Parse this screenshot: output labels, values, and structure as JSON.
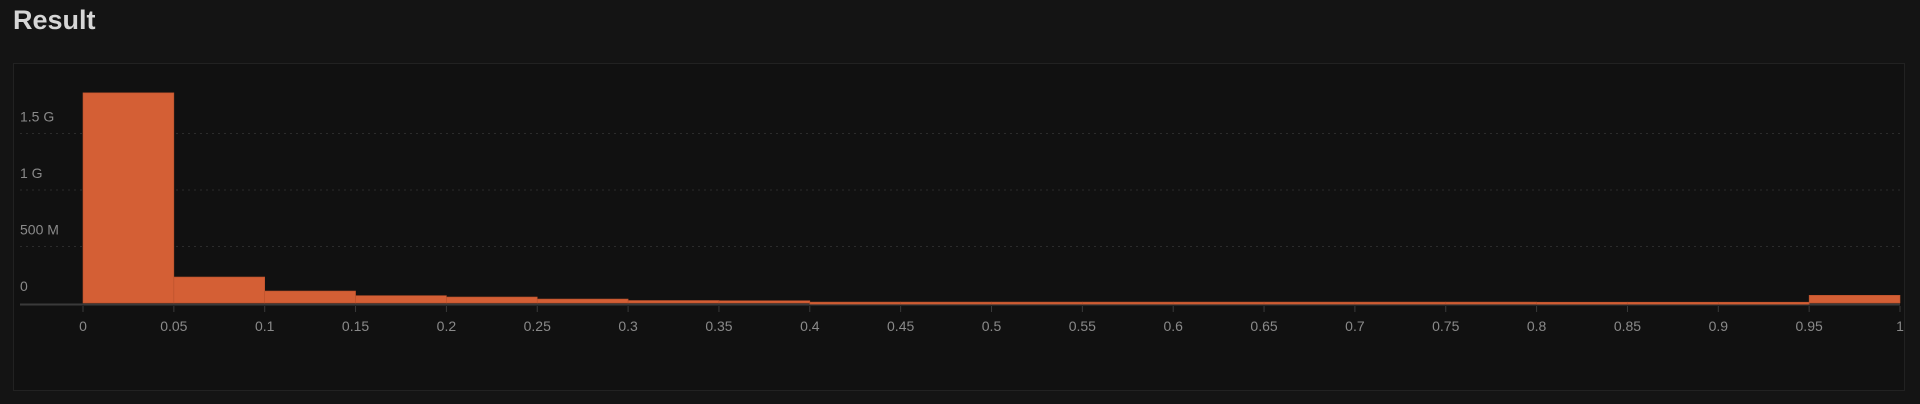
{
  "header": {
    "title": "Result"
  },
  "chart_data": {
    "type": "bar",
    "title": "",
    "xlabel": "",
    "ylabel": "",
    "bins": [
      [
        0,
        0.05
      ],
      [
        0.05,
        0.1
      ],
      [
        0.1,
        0.15
      ],
      [
        0.15,
        0.2
      ],
      [
        0.2,
        0.25
      ],
      [
        0.25,
        0.3
      ],
      [
        0.3,
        0.35
      ],
      [
        0.35,
        0.4
      ],
      [
        0.4,
        0.45
      ],
      [
        0.45,
        0.5
      ],
      [
        0.5,
        0.55
      ],
      [
        0.55,
        0.6
      ],
      [
        0.6,
        0.65
      ],
      [
        0.65,
        0.7
      ],
      [
        0.7,
        0.75
      ],
      [
        0.75,
        0.8
      ],
      [
        0.8,
        0.85
      ],
      [
        0.85,
        0.9
      ],
      [
        0.9,
        0.95
      ],
      [
        0.95,
        1
      ]
    ],
    "values": [
      1860000000,
      230000000,
      106000000,
      65000000,
      53000000,
      35000000,
      22000000,
      20000000,
      8000000,
      8000000,
      8000000,
      8000000,
      8000000,
      8000000,
      8000000,
      8000000,
      7000000,
      7000000,
      7000000,
      68000000
    ],
    "xlim": [
      0,
      1
    ],
    "ylim": [
      0,
      1950000000
    ],
    "x_ticks": [
      "0",
      "0.05",
      "0.1",
      "0.15",
      "0.2",
      "0.25",
      "0.3",
      "0.35",
      "0.4",
      "0.45",
      "0.5",
      "0.55",
      "0.6",
      "0.65",
      "0.7",
      "0.75",
      "0.8",
      "0.85",
      "0.9",
      "0.95",
      "1"
    ],
    "y_ticks": [
      {
        "value": 0,
        "label": "0"
      },
      {
        "value": 500000000,
        "label": "500 M"
      },
      {
        "value": 1000000000,
        "label": "1 G"
      },
      {
        "value": 1500000000,
        "label": "1.5 G"
      }
    ],
    "grid": true,
    "bar_color": "#d45f35",
    "legend": "none"
  }
}
